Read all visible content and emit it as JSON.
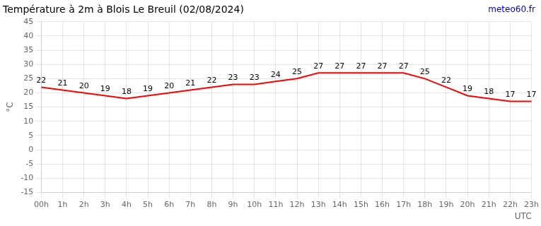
{
  "chart_data": {
    "type": "line",
    "title": "Température à 2m à Blois Le Breuil (02/08/2024)",
    "ylabel": "°C",
    "xlabel": "UTC",
    "annotations": [
      {
        "text": "meteo60.fr",
        "color": "#0000cc"
      }
    ],
    "categories": [
      "00h",
      "1h",
      "2h",
      "3h",
      "4h",
      "5h",
      "6h",
      "7h",
      "8h",
      "9h",
      "10h",
      "11h",
      "12h",
      "13h",
      "14h",
      "15h",
      "16h",
      "17h",
      "18h",
      "19h",
      "20h",
      "21h",
      "22h",
      "23h"
    ],
    "values": [
      22,
      21,
      20,
      19,
      18,
      19,
      20,
      21,
      22,
      23,
      23,
      24,
      25,
      27,
      27,
      27,
      27,
      27,
      25,
      22,
      19,
      18,
      17,
      17
    ],
    "color": "#ff0000",
    "ylim": [
      -15,
      45
    ],
    "yticks": [
      -15,
      -10,
      -5,
      0,
      5,
      10,
      15,
      20,
      25,
      30,
      35,
      40,
      45
    ],
    "grid": true,
    "data_labels": true
  }
}
